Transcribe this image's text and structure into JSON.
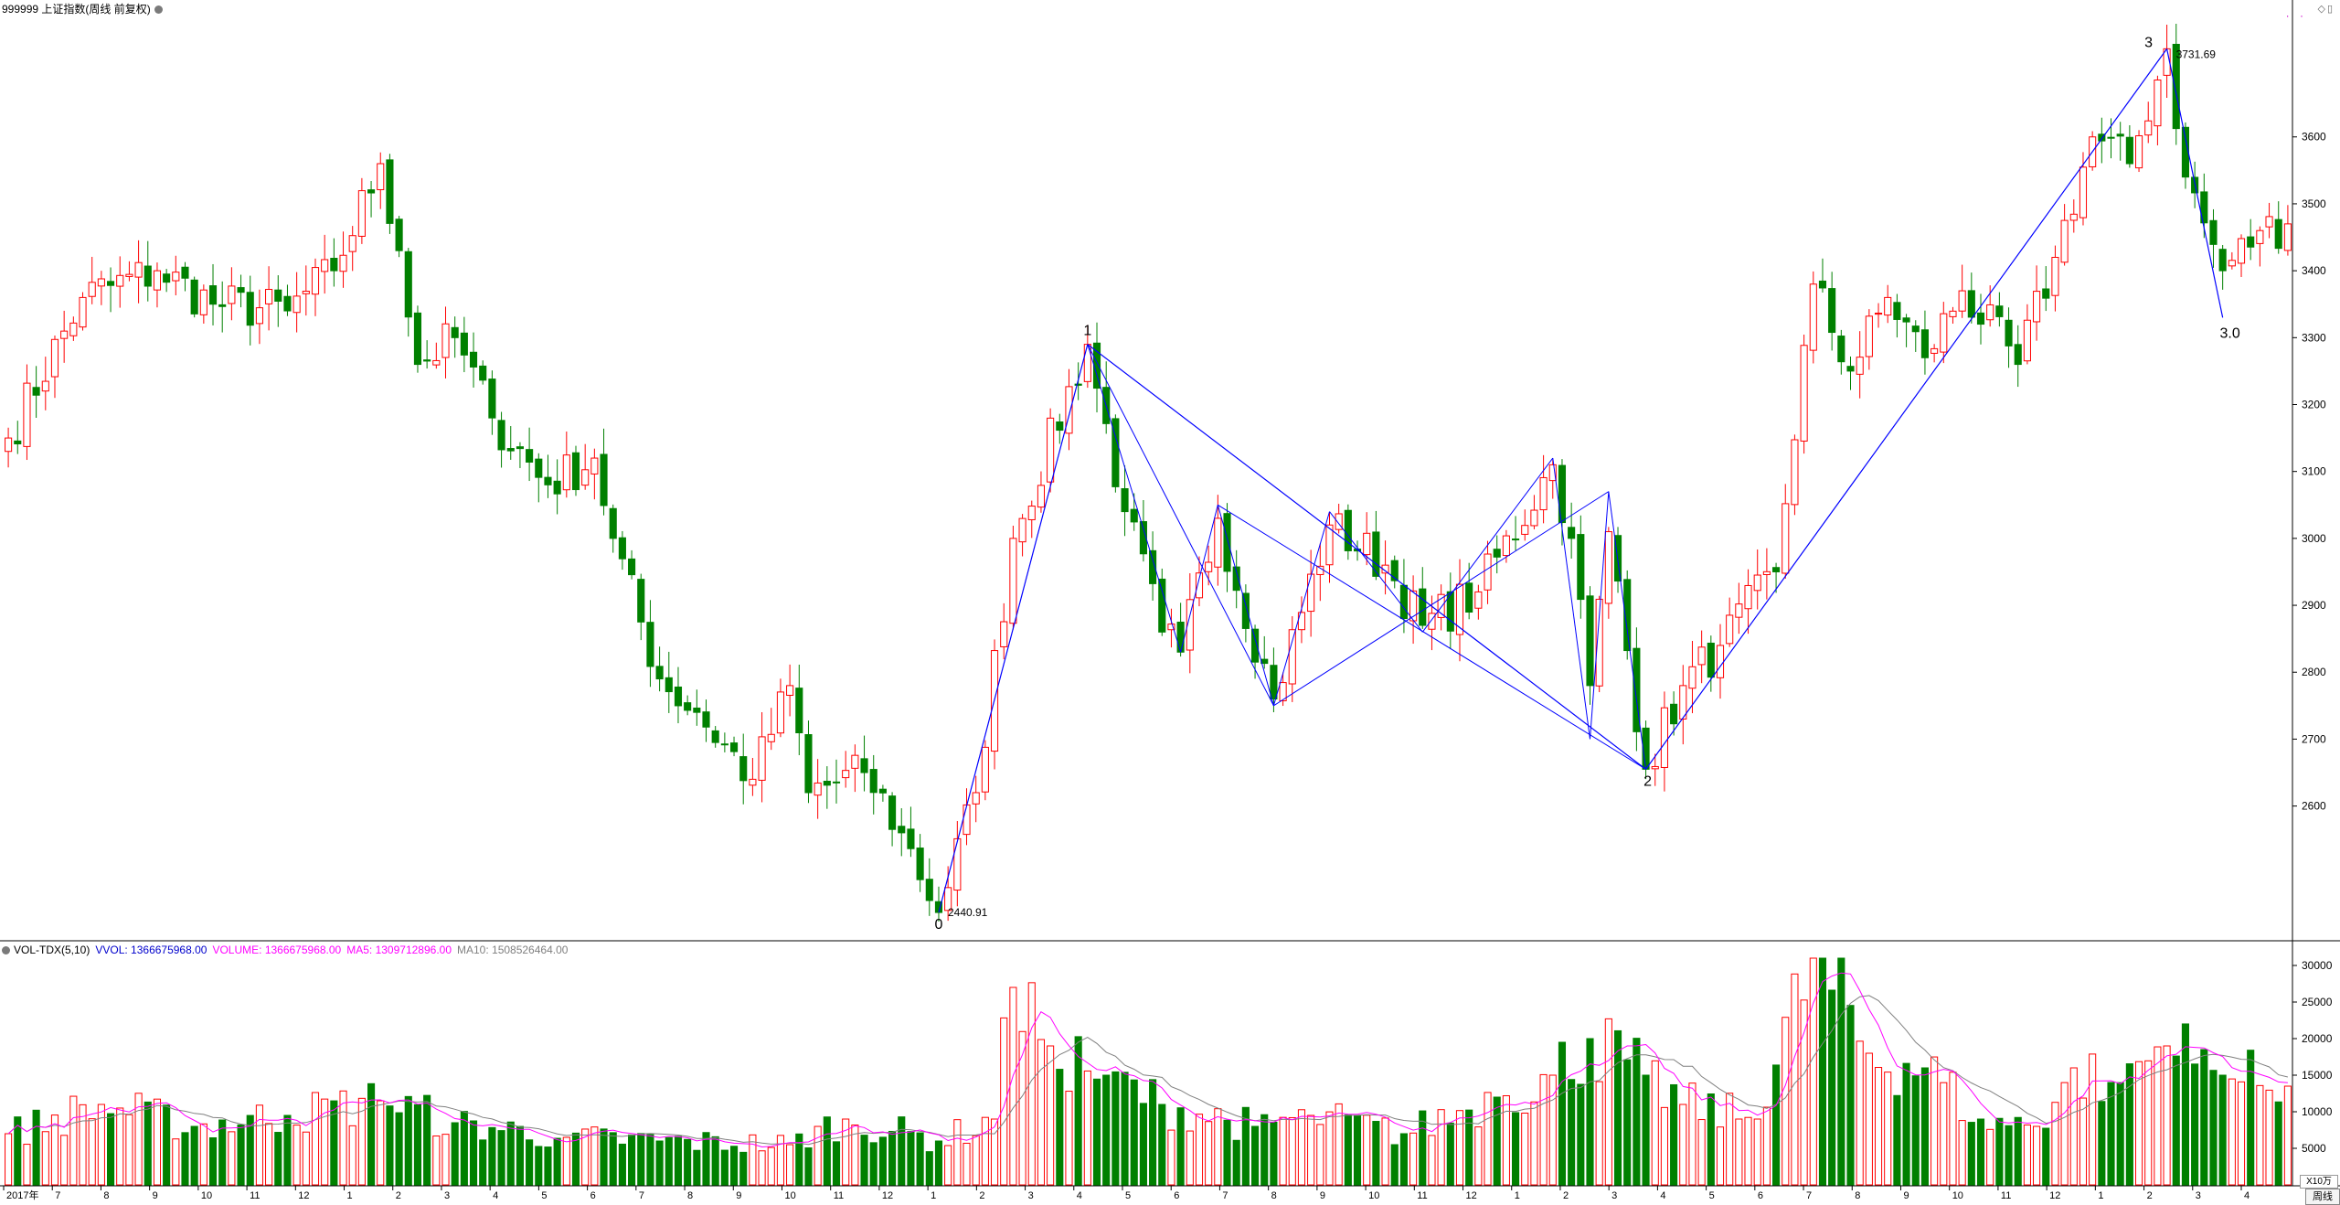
{
  "header": {
    "title": "999999 上证指数(周线 前复权)"
  },
  "vol_header": {
    "name": "VOL-TDX(5,10)",
    "vvol": "VVOL: 1366675968.00",
    "volume": "VOLUME: 1366675968.00",
    "ma5": "MA5: 1309712896.00",
    "ma10": "MA10: 1508526464.00"
  },
  "unit_label": "X10万",
  "period_label": "周线",
  "colors": {
    "up": "#ff0000",
    "down": "#008000",
    "wave": "#0000ff",
    "ma5": "#ff00ff",
    "ma10": "#808080",
    "axis": "#000000"
  },
  "chart_data": [
    {
      "type": "candlestick",
      "title": "999999 上证指数(周线 前复权)",
      "ylim": [
        2400,
        3780
      ],
      "y_ticks": [
        2600,
        2700,
        2800,
        2900,
        3000,
        3100,
        3200,
        3300,
        3400,
        3500,
        3600
      ],
      "annotations": {
        "low_label": "2440.91",
        "high_label": "3731.69",
        "wave_0": "0",
        "wave_1": "1",
        "wave_2": "2",
        "wave_3": "3",
        "wave_30": "3.0"
      },
      "wave_points": [
        {
          "bar": 0,
          "value": 2440.91
        },
        {
          "bar": 0,
          "value": 3290
        },
        {
          "bar": 0,
          "value": 2655
        },
        {
          "bar": 0,
          "value": 3731.69
        },
        {
          "bar": 0,
          "value": 3330
        }
      ],
      "wave_labels": [
        "0",
        "1",
        "2",
        "3",
        "3.0"
      ],
      "anchors": [
        [
          0,
          3150
        ],
        [
          8,
          3360
        ],
        [
          16,
          3400
        ],
        [
          22,
          3350
        ],
        [
          30,
          3340
        ],
        [
          35,
          3400
        ],
        [
          40,
          3560
        ],
        [
          42,
          3430
        ],
        [
          44,
          3260
        ],
        [
          48,
          3300
        ],
        [
          52,
          3180
        ],
        [
          58,
          3080
        ],
        [
          63,
          3120
        ],
        [
          65,
          3000
        ],
        [
          70,
          2790
        ],
        [
          74,
          2740
        ],
        [
          80,
          2640
        ],
        [
          84,
          2780
        ],
        [
          86,
          2620
        ],
        [
          92,
          2650
        ],
        [
          96,
          2560
        ],
        [
          100,
          2440.91
        ],
        [
          104,
          2620
        ],
        [
          108,
          3000
        ],
        [
          116,
          3290
        ],
        [
          120,
          3040
        ],
        [
          124,
          2860
        ],
        [
          126,
          2830
        ],
        [
          130,
          3030
        ],
        [
          136,
          2760
        ],
        [
          142,
          3020
        ],
        [
          148,
          2960
        ],
        [
          152,
          2870
        ],
        [
          158,
          2920
        ],
        [
          166,
          3110
        ],
        [
          168,
          3000
        ],
        [
          170,
          2780
        ],
        [
          172,
          3010
        ],
        [
          176,
          2655
        ],
        [
          180,
          2780
        ],
        [
          184,
          2840
        ],
        [
          190,
          2950
        ],
        [
          194,
          3380
        ],
        [
          198,
          3250
        ],
        [
          202,
          3360
        ],
        [
          206,
          3270
        ],
        [
          210,
          3370
        ],
        [
          216,
          3260
        ],
        [
          220,
          3420
        ],
        [
          224,
          3600
        ],
        [
          228,
          3560
        ],
        [
          232,
          3731.69
        ],
        [
          234,
          3540
        ],
        [
          238,
          3400
        ],
        [
          242,
          3460
        ],
        [
          245,
          3470
        ]
      ],
      "n_bars": 246,
      "x_tick_labels": [
        "2017年",
        "7",
        "8",
        "9",
        "10",
        "11",
        "12",
        "1",
        "2",
        "3",
        "4",
        "5",
        "6",
        "7",
        "8",
        "9",
        "10",
        "11",
        "12",
        "1",
        "2",
        "3",
        "4",
        "5",
        "6",
        "7",
        "8",
        "9",
        "10",
        "11",
        "12",
        "1",
        "2",
        "3",
        "4",
        "5",
        "6",
        "7",
        "8",
        "9",
        "10",
        "11",
        "12",
        "1",
        "2",
        "3",
        "4"
      ]
    },
    {
      "type": "bar",
      "title": "VOL-TDX(5,10)",
      "ylim": [
        0,
        31000
      ],
      "y_ticks": [
        5000,
        10000,
        15000,
        20000,
        25000,
        30000
      ],
      "series": [
        {
          "name": "VOLUME",
          "color": "#ff0000"
        },
        {
          "name": "MA5",
          "color": "#ff00ff"
        },
        {
          "name": "MA10",
          "color": "#808080"
        }
      ],
      "volume_anchors": [
        [
          0,
          7000
        ],
        [
          10,
          11000
        ],
        [
          20,
          8000
        ],
        [
          30,
          9500
        ],
        [
          40,
          11500
        ],
        [
          48,
          8500
        ],
        [
          60,
          6500
        ],
        [
          70,
          6000
        ],
        [
          84,
          5500
        ],
        [
          90,
          9000
        ],
        [
          100,
          6000
        ],
        [
          106,
          9000
        ],
        [
          108,
          27000
        ],
        [
          112,
          19000
        ],
        [
          118,
          15000
        ],
        [
          124,
          11000
        ],
        [
          134,
          8000
        ],
        [
          140,
          9500
        ],
        [
          150,
          7000
        ],
        [
          160,
          12000
        ],
        [
          166,
          15000
        ],
        [
          170,
          20000
        ],
        [
          176,
          15000
        ],
        [
          180,
          11000
        ],
        [
          188,
          9000
        ],
        [
          194,
          31000
        ],
        [
          200,
          18000
        ],
        [
          206,
          16000
        ],
        [
          212,
          9000
        ],
        [
          218,
          8000
        ],
        [
          222,
          16000
        ],
        [
          226,
          14000
        ],
        [
          232,
          19000
        ],
        [
          238,
          15000
        ],
        [
          245,
          13500
        ]
      ]
    }
  ]
}
